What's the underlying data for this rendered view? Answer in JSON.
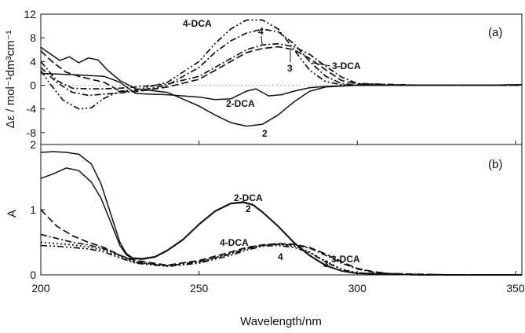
{
  "chart_data": [
    {
      "panel": "(a)",
      "type": "line",
      "ylabel": "Δε / mol⁻¹dm³cm⁻¹",
      "xlim": [
        200,
        352
      ],
      "ylim": [
        -10,
        12
      ],
      "yticks": [
        12,
        8,
        4,
        0,
        -4,
        -8
      ],
      "ytick_labels": [
        "12",
        "8",
        "4",
        "0",
        "-4",
        "-8"
      ],
      "zero_line": true,
      "series": [
        {
          "name": "2",
          "style": "solid",
          "x": [
            200,
            203,
            206,
            209,
            212,
            215,
            218,
            221,
            225,
            230,
            240,
            250,
            255,
            260,
            265,
            270,
            275,
            280,
            285,
            290,
            300,
            320,
            340,
            352
          ],
          "y": [
            6.4,
            5.3,
            4.2,
            4.8,
            3.8,
            4.6,
            4.3,
            2.6,
            0.8,
            -0.6,
            -1.2,
            -3.5,
            -5,
            -6.3,
            -6.9,
            -6.6,
            -5,
            -2.8,
            -1,
            -0.3,
            0,
            0,
            0,
            0.1
          ]
        },
        {
          "name": "2-DCA",
          "style": "solid",
          "x": [
            200,
            210,
            220,
            225,
            230,
            240,
            250,
            255,
            260,
            265,
            268,
            272,
            276,
            280,
            285,
            290,
            300,
            320,
            340,
            352
          ],
          "y": [
            2,
            1.8,
            1.5,
            0.5,
            -1.4,
            -1.6,
            -2,
            -2.4,
            -2.3,
            -1,
            -0.6,
            -1.8,
            -1.6,
            -1,
            -0.4,
            -0.2,
            0,
            0,
            0,
            0.1
          ]
        },
        {
          "name": "4-DCA",
          "style": "dashdotdot",
          "x": [
            200,
            203,
            207,
            212,
            216,
            220,
            225,
            230,
            240,
            250,
            255,
            260,
            265,
            270,
            275,
            280,
            285,
            290,
            295,
            300,
            320,
            340,
            352
          ],
          "y": [
            2.5,
            0.2,
            -2.5,
            -4,
            -3.8,
            -2.2,
            -1,
            -0.8,
            0.5,
            4,
            7,
            9.5,
            11,
            11,
            9.5,
            6,
            2.5,
            0.6,
            0.1,
            0,
            0,
            0,
            0
          ]
        },
        {
          "name": "4",
          "style": "dashdot",
          "x": [
            200,
            205,
            210,
            215,
            220,
            225,
            230,
            240,
            250,
            255,
            260,
            265,
            270,
            275,
            280,
            285,
            290,
            295,
            300,
            320,
            340,
            352
          ],
          "y": [
            3,
            0.5,
            -1.2,
            -1.7,
            -1.5,
            -1.3,
            -1,
            0,
            3,
            5.5,
            7.5,
            8.8,
            9.5,
            9,
            7,
            4,
            1.5,
            0.3,
            0,
            0,
            0,
            0
          ]
        },
        {
          "name": "3",
          "style": "dashed",
          "x": [
            200,
            204,
            208,
            212,
            216,
            220,
            225,
            230,
            240,
            250,
            255,
            260,
            265,
            270,
            275,
            280,
            285,
            290,
            295,
            300,
            320,
            340,
            352
          ],
          "y": [
            5.8,
            3.8,
            2.2,
            1.5,
            1,
            0.5,
            -1,
            -1.1,
            -0.3,
            1,
            2.5,
            4,
            5.5,
            6.2,
            6.5,
            6,
            4.5,
            2.6,
            0.8,
            0.2,
            0,
            0,
            0
          ]
        },
        {
          "name": "3-DCA",
          "style": "dashdot",
          "x": [
            200,
            205,
            210,
            215,
            220,
            225,
            230,
            240,
            250,
            255,
            260,
            265,
            270,
            275,
            280,
            285,
            290,
            295,
            300,
            320,
            340,
            352
          ],
          "y": [
            4,
            0.8,
            -0.5,
            -0.6,
            -0.6,
            -0.5,
            -0.3,
            0.2,
            1.5,
            3,
            4.5,
            6,
            6.8,
            7,
            6.5,
            5.2,
            3.2,
            1.4,
            0.3,
            0,
            0,
            0
          ]
        }
      ]
    },
    {
      "panel": "(b)",
      "type": "line",
      "xlabel": "Wavelength/nm",
      "ylabel": "A",
      "xlim": [
        200,
        352
      ],
      "ylim": [
        0,
        2
      ],
      "yticks": [
        0,
        1,
        2
      ],
      "ytick_labels": [
        "0",
        "1",
        "2"
      ],
      "xticks": [
        200,
        250,
        300,
        350
      ],
      "xtick_labels": [
        "200",
        "250",
        "300",
        "350"
      ],
      "series": [
        {
          "name": "2-DCA",
          "style": "solid",
          "x": [
            200,
            204,
            208,
            212,
            216,
            219,
            222,
            225,
            227,
            229,
            232,
            236,
            240,
            245,
            250,
            255,
            260,
            264,
            267,
            270,
            275,
            280,
            285,
            290,
            295,
            300,
            310,
            320,
            330,
            340,
            352
          ],
          "y": [
            1.88,
            1.89,
            1.88,
            1.85,
            1.7,
            1.4,
            0.95,
            0.5,
            0.33,
            0.26,
            0.25,
            0.28,
            0.38,
            0.55,
            0.78,
            0.98,
            1.1,
            1.12,
            1.08,
            0.97,
            0.75,
            0.5,
            0.3,
            0.15,
            0.06,
            0.02,
            0.01,
            0,
            0,
            0,
            0
          ]
        },
        {
          "name": "2",
          "style": "solid",
          "x": [
            200,
            204,
            208,
            212,
            216,
            219,
            222,
            225,
            227,
            229,
            232,
            236,
            240,
            245,
            250,
            255,
            260,
            264,
            267,
            270,
            275,
            280,
            285,
            290,
            295,
            300,
            310,
            320,
            330,
            340,
            352
          ],
          "y": [
            1.48,
            1.55,
            1.64,
            1.6,
            1.42,
            1.18,
            0.82,
            0.45,
            0.31,
            0.25,
            0.24,
            0.27,
            0.37,
            0.54,
            0.77,
            0.97,
            1.09,
            1.11,
            1.07,
            0.96,
            0.74,
            0.49,
            0.29,
            0.14,
            0.06,
            0.02,
            0.01,
            0,
            0,
            0,
            0
          ]
        },
        {
          "name": "3-DCA",
          "style": "dashed",
          "x": [
            200,
            205,
            210,
            215,
            220,
            225,
            230,
            240,
            250,
            260,
            265,
            270,
            275,
            280,
            285,
            290,
            295,
            300,
            305,
            310,
            320,
            330,
            340,
            352
          ],
          "y": [
            1,
            0.75,
            0.6,
            0.5,
            0.42,
            0.3,
            0.22,
            0.15,
            0.22,
            0.35,
            0.42,
            0.46,
            0.48,
            0.47,
            0.42,
            0.32,
            0.2,
            0.1,
            0.05,
            0.02,
            0.01,
            0,
            0,
            0
          ]
        },
        {
          "name": "3",
          "style": "dashdot",
          "x": [
            200,
            205,
            210,
            215,
            220,
            225,
            230,
            240,
            250,
            260,
            265,
            270,
            275,
            280,
            285,
            290,
            295,
            300,
            305,
            310,
            320,
            330,
            340,
            352
          ],
          "y": [
            0.62,
            0.56,
            0.5,
            0.46,
            0.4,
            0.3,
            0.2,
            0.14,
            0.2,
            0.32,
            0.4,
            0.45,
            0.47,
            0.46,
            0.41,
            0.3,
            0.18,
            0.09,
            0.04,
            0.02,
            0.01,
            0,
            0,
            0
          ]
        },
        {
          "name": "4",
          "style": "dashdotdot",
          "x": [
            200,
            205,
            210,
            215,
            220,
            225,
            230,
            240,
            250,
            260,
            265,
            270,
            275,
            280,
            285,
            290,
            295,
            300,
            310,
            320,
            330,
            340,
            352
          ],
          "y": [
            0.45,
            0.44,
            0.42,
            0.4,
            0.35,
            0.26,
            0.18,
            0.13,
            0.18,
            0.3,
            0.38,
            0.44,
            0.45,
            0.42,
            0.34,
            0.2,
            0.08,
            0.03,
            0.01,
            0,
            0,
            0,
            0
          ]
        },
        {
          "name": "4-DCA",
          "style": "dotted",
          "x": [
            200,
            205,
            210,
            215,
            220,
            225,
            230,
            240,
            250,
            260,
            265,
            270,
            275,
            280,
            285,
            290,
            295,
            300,
            310,
            320,
            330,
            340,
            352
          ],
          "y": [
            0.5,
            0.48,
            0.46,
            0.43,
            0.38,
            0.28,
            0.19,
            0.14,
            0.2,
            0.33,
            0.41,
            0.46,
            0.47,
            0.44,
            0.35,
            0.21,
            0.09,
            0.03,
            0.01,
            0,
            0,
            0,
            0
          ]
        }
      ]
    }
  ],
  "annotations": {
    "a_4dca": "4-DCA",
    "a_4": "4",
    "a_3": "3",
    "a_3dca": "3-DCA",
    "a_2dca": "2-DCA",
    "a_2": "2",
    "b_2dca": "2-DCA",
    "b_2": "2",
    "b_4dca": "4-DCA",
    "b_4": "4",
    "b_3": "3",
    "b_3dca": "3-DCA"
  },
  "colors": {
    "line": "#111111",
    "zero_line": "#aaaaaa"
  }
}
